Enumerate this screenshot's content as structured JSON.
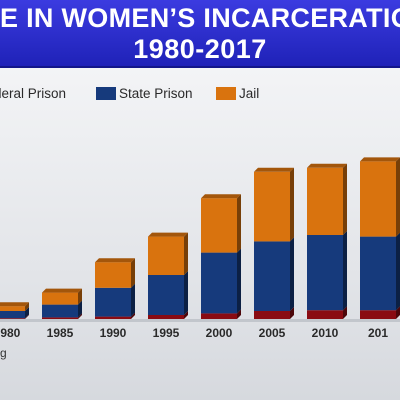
{
  "title": {
    "line1": "E IN WOMEN’S INCARCERATIO",
    "line2": "1980-2017"
  },
  "legend": [
    {
      "label": "deral Prison",
      "color": "#8a0b12"
    },
    {
      "label": "State Prison",
      "color": "#163a7c"
    },
    {
      "label": "Jail",
      "color": "#d9730e"
    }
  ],
  "source_text": "rg",
  "chart_data": {
    "type": "bar",
    "stacked": true,
    "categories": [
      "1980",
      "1985",
      "1990",
      "1995",
      "2000",
      "2005",
      "2010",
      "201"
    ],
    "series": [
      {
        "name": "Federal Prison",
        "color": "#8a0b12",
        "values": [
          1,
          2,
          3,
          5,
          7,
          10,
          11,
          11
        ]
      },
      {
        "name": "State Prison",
        "color": "#163a7c",
        "values": [
          9,
          16,
          36,
          50,
          76,
          87,
          94,
          92
        ]
      },
      {
        "name": "Jail",
        "color": "#d9730e",
        "values": [
          6,
          15,
          32,
          48,
          68,
          87,
          84,
          94
        ]
      }
    ],
    "grid": false,
    "legend_position": "top-left"
  }
}
